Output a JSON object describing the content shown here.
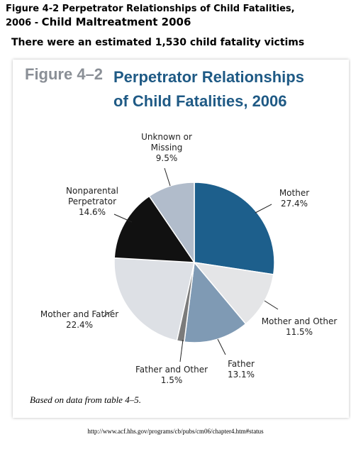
{
  "header": {
    "title_line1": "Figure 4-2 Perpetrator Relationships of Child Fatalities,",
    "title_line2": "2006 -",
    "publication": "Child Maltreatment 2006",
    "subtitle": "There were an estimated 1,530 child fatality victims",
    "url": "http://www.acf.hhs.gov/programs/cb/pubs/cm06/chapter4.htm#status"
  },
  "chart_data": {
    "type": "pie",
    "figure_label": "Figure 4–2",
    "title": "Perpetrator Relationships of Child Fatalities, 2006",
    "note": "Based on data from table 4–5.",
    "categories": [
      "Mother",
      "Mother and Other",
      "Father",
      "Father and Other",
      "Mother and Father",
      "Nonparental Perpetrator",
      "Unknown or Missing"
    ],
    "values": [
      27.4,
      11.5,
      13.1,
      1.5,
      22.4,
      14.6,
      9.5
    ],
    "value_labels": [
      "27.4%",
      "11.5%",
      "13.1%",
      "1.5%",
      "22.4%",
      "14.6%",
      "9.5%"
    ],
    "colors": [
      "#1d5f8c",
      "#e4e5e7",
      "#7f9ab4",
      "#7b7b7b",
      "#dde0e5",
      "#111111",
      "#b1bccb"
    ]
  }
}
